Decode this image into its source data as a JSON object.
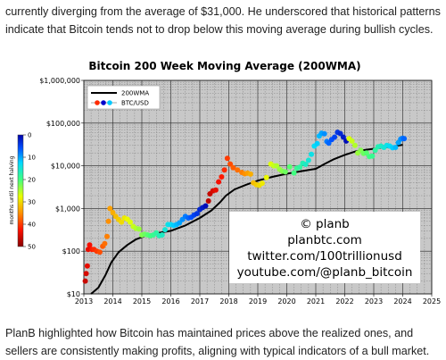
{
  "article": {
    "para_top": "currently diverging from the average of $31,000. He underscored that historical patterns indicate that Bitcoin tends not to drop below this moving average during bullish cycles.",
    "para_bottom": "PlanB highlighted how Bitcoin has maintained prices above the realized ones, and sellers are consistently making profits, aligning with typical indicators of a bull market."
  },
  "chart_data": {
    "type": "scatter",
    "title": "Bitcoin 200 Week Moving Average (200WMA)",
    "y_scale": "log",
    "ylim": [
      10,
      1000000
    ],
    "xlim": [
      2013,
      2025
    ],
    "y_tick_labels": [
      "$10",
      "$100",
      "$1,000",
      "$10,000",
      "$100,000",
      "$1,000,000"
    ],
    "y_tick_values": [
      10,
      100,
      1000,
      10000,
      100000,
      1000000
    ],
    "x_tick_labels": [
      "2013",
      "2014",
      "2015",
      "2016",
      "2017",
      "2018",
      "2019",
      "2020",
      "2021",
      "2022",
      "2023",
      "2024",
      "2025"
    ],
    "x_tick_values": [
      2013,
      2014,
      2015,
      2016,
      2017,
      2018,
      2019,
      2020,
      2021,
      2022,
      2023,
      2024,
      2025
    ],
    "grid": true,
    "legend_position": "top-left",
    "legend": [
      {
        "label": "200WMA",
        "kind": "line",
        "color": "#000000"
      },
      {
        "label": "BTC/USD",
        "kind": "marker",
        "color": "#0000cc"
      }
    ],
    "colorbar": {
      "label": "months until next halving",
      "min": 0,
      "max": 50,
      "tick_labels": [
        "0",
        "10",
        "20",
        "30",
        "40",
        "50"
      ],
      "tick_values": [
        0,
        10,
        20,
        30,
        40,
        50
      ]
    },
    "watermark": [
      "© planb",
      "planbtc.com",
      "twitter.com/100trillionusd",
      "youtube.com/@planb_bitcoin"
    ],
    "series": [
      {
        "name": "200WMA",
        "style": "line",
        "color": "#000000",
        "x": [
          2013.25,
          2013.5,
          2013.75,
          2013.95,
          2014.2,
          2014.5,
          2014.8,
          2015.2,
          2015.6,
          2016.0,
          2016.5,
          2017.0,
          2017.4,
          2017.7,
          2017.9,
          2018.2,
          2018.6,
          2019.0,
          2019.5,
          2020.0,
          2020.5,
          2021.0,
          2021.3,
          2021.6,
          2022.0,
          2022.4,
          2022.8,
          2023.2,
          2023.6,
          2024.0
        ],
        "y": [
          10,
          14,
          28,
          55,
          95,
          140,
          190,
          240,
          270,
          300,
          400,
          600,
          900,
          1400,
          2000,
          2800,
          3600,
          4500,
          5500,
          6500,
          7500,
          8500,
          11000,
          14000,
          18000,
          22000,
          24000,
          26000,
          28000,
          31000
        ]
      },
      {
        "name": "BTC/USD",
        "style": "markers",
        "color_by": "months_until_next_halving",
        "points": [
          [
            2013.05,
            20,
            46
          ],
          [
            2013.08,
            30,
            45
          ],
          [
            2013.12,
            45,
            44
          ],
          [
            2013.15,
            110,
            44
          ],
          [
            2013.2,
            140,
            43
          ],
          [
            2013.28,
            110,
            42
          ],
          [
            2013.35,
            110,
            41
          ],
          [
            2013.45,
            100,
            40
          ],
          [
            2013.55,
            95,
            39
          ],
          [
            2013.65,
            130,
            38
          ],
          [
            2013.72,
            150,
            37
          ],
          [
            2013.8,
            220,
            36
          ],
          [
            2013.85,
            500,
            35
          ],
          [
            2013.9,
            1000,
            34
          ],
          [
            2014.0,
            800,
            33
          ],
          [
            2014.1,
            650,
            32
          ],
          [
            2014.2,
            550,
            31
          ],
          [
            2014.3,
            480,
            30
          ],
          [
            2014.4,
            600,
            29
          ],
          [
            2014.5,
            560,
            28
          ],
          [
            2014.6,
            480,
            27
          ],
          [
            2014.7,
            380,
            26
          ],
          [
            2014.8,
            340,
            25
          ],
          [
            2014.9,
            330,
            24
          ],
          [
            2015.0,
            240,
            23
          ],
          [
            2015.1,
            250,
            22
          ],
          [
            2015.2,
            240,
            21
          ],
          [
            2015.3,
            230,
            20
          ],
          [
            2015.4,
            240,
            19
          ],
          [
            2015.5,
            270,
            18
          ],
          [
            2015.6,
            230,
            17
          ],
          [
            2015.7,
            240,
            16
          ],
          [
            2015.8,
            320,
            15
          ],
          [
            2015.9,
            420,
            14
          ],
          [
            2016.0,
            420,
            13
          ],
          [
            2016.1,
            400,
            12
          ],
          [
            2016.2,
            420,
            11
          ],
          [
            2016.3,
            460,
            10
          ],
          [
            2016.4,
            550,
            9
          ],
          [
            2016.5,
            650,
            8
          ],
          [
            2016.6,
            600,
            7
          ],
          [
            2016.7,
            620,
            6
          ],
          [
            2016.8,
            700,
            5
          ],
          [
            2016.9,
            760,
            4
          ],
          [
            2017.0,
            950,
            3
          ],
          [
            2017.1,
            1050,
            2
          ],
          [
            2017.2,
            1150,
            1
          ],
          [
            2017.3,
            1500,
            47
          ],
          [
            2017.35,
            2200,
            46
          ],
          [
            2017.45,
            2600,
            45
          ],
          [
            2017.55,
            2700,
            44
          ],
          [
            2017.65,
            4200,
            43
          ],
          [
            2017.75,
            5500,
            42
          ],
          [
            2017.85,
            8000,
            41
          ],
          [
            2017.95,
            15000,
            40
          ],
          [
            2018.05,
            11000,
            39
          ],
          [
            2018.15,
            9000,
            38
          ],
          [
            2018.3,
            8000,
            37
          ],
          [
            2018.45,
            7000,
            36
          ],
          [
            2018.55,
            6500,
            35
          ],
          [
            2018.65,
            6700,
            34
          ],
          [
            2018.75,
            6400,
            33
          ],
          [
            2018.85,
            4000,
            32
          ],
          [
            2018.95,
            3600,
            31
          ],
          [
            2019.05,
            3500,
            30
          ],
          [
            2019.15,
            3900,
            29
          ],
          [
            2019.3,
            5300,
            28
          ],
          [
            2019.45,
            11000,
            27
          ],
          [
            2019.55,
            10000,
            26
          ],
          [
            2019.65,
            10000,
            25
          ],
          [
            2019.75,
            8300,
            24
          ],
          [
            2019.85,
            7500,
            23
          ],
          [
            2019.95,
            7200,
            22
          ],
          [
            2020.1,
            9500,
            21
          ],
          [
            2020.25,
            6800,
            20
          ],
          [
            2020.35,
            8800,
            19
          ],
          [
            2020.45,
            9300,
            18
          ],
          [
            2020.55,
            11500,
            17
          ],
          [
            2020.65,
            10800,
            16
          ],
          [
            2020.75,
            13500,
            15
          ],
          [
            2020.85,
            18500,
            14
          ],
          [
            2020.95,
            29000,
            13
          ],
          [
            2021.05,
            33000,
            12
          ],
          [
            2021.12,
            50000,
            11
          ],
          [
            2021.2,
            58000,
            10
          ],
          [
            2021.3,
            56000,
            9
          ],
          [
            2021.38,
            37000,
            8
          ],
          [
            2021.45,
            34000,
            7
          ],
          [
            2021.55,
            41000,
            6
          ],
          [
            2021.65,
            47000,
            5
          ],
          [
            2021.75,
            61000,
            4
          ],
          [
            2021.85,
            57000,
            3
          ],
          [
            2021.95,
            47000,
            2
          ],
          [
            2022.05,
            38000,
            1
          ],
          [
            2022.15,
            43000,
            27
          ],
          [
            2022.25,
            38000,
            26
          ],
          [
            2022.35,
            30000,
            25
          ],
          [
            2022.45,
            20000,
            24
          ],
          [
            2022.55,
            23000,
            23
          ],
          [
            2022.65,
            19500,
            22
          ],
          [
            2022.75,
            20000,
            21
          ],
          [
            2022.85,
            16500,
            20
          ],
          [
            2022.95,
            16800,
            19
          ],
          [
            2023.05,
            23000,
            18
          ],
          [
            2023.15,
            28000,
            17
          ],
          [
            2023.25,
            29000,
            16
          ],
          [
            2023.35,
            27000,
            15
          ],
          [
            2023.45,
            30000,
            14
          ],
          [
            2023.55,
            29000,
            13
          ],
          [
            2023.65,
            26500,
            12
          ],
          [
            2023.75,
            27000,
            11
          ],
          [
            2023.85,
            35000,
            10
          ],
          [
            2023.93,
            42000,
            9
          ],
          [
            2024.0,
            44000,
            8
          ],
          [
            2024.05,
            43000,
            7
          ]
        ]
      }
    ]
  }
}
